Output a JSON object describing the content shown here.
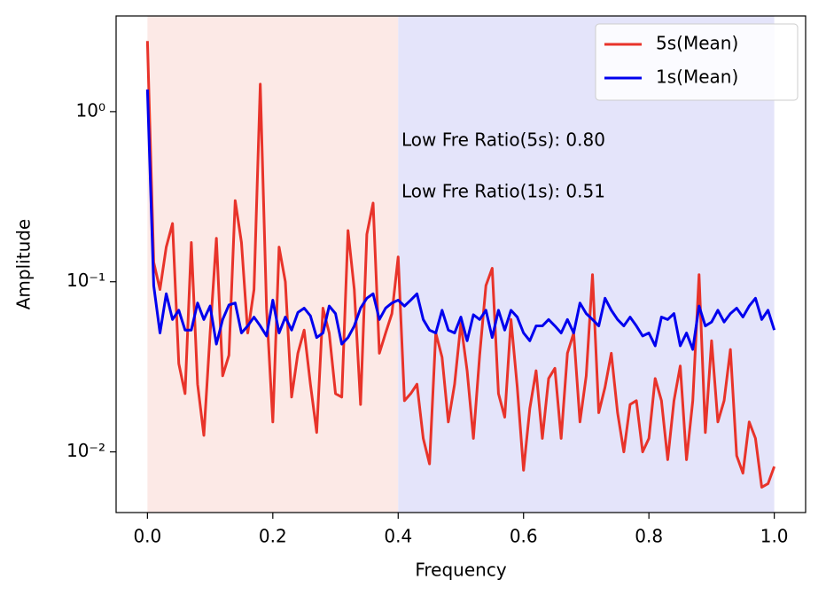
{
  "chart_data": {
    "type": "line",
    "xlabel": "Frequency",
    "ylabel": "Amplitude",
    "x": [
      0,
      0.01,
      0.02,
      0.03,
      0.04,
      0.05,
      0.06,
      0.07,
      0.08,
      0.09,
      0.1,
      0.11,
      0.12,
      0.13,
      0.14,
      0.15,
      0.16,
      0.17,
      0.18,
      0.19,
      0.2,
      0.21,
      0.22,
      0.23,
      0.24,
      0.25,
      0.26,
      0.27,
      0.28,
      0.29,
      0.3,
      0.31,
      0.32,
      0.33,
      0.34,
      0.35,
      0.36,
      0.37,
      0.38,
      0.39,
      0.4,
      0.41,
      0.42,
      0.43,
      0.44,
      0.45,
      0.46,
      0.47,
      0.48,
      0.49,
      0.5,
      0.51,
      0.52,
      0.53,
      0.54,
      0.55,
      0.56,
      0.57,
      0.58,
      0.59,
      0.6,
      0.61,
      0.62,
      0.63,
      0.64,
      0.65,
      0.66,
      0.67,
      0.68,
      0.69,
      0.7,
      0.71,
      0.72,
      0.73,
      0.74,
      0.75,
      0.76,
      0.77,
      0.78,
      0.79,
      0.8,
      0.81,
      0.82,
      0.83,
      0.84,
      0.85,
      0.86,
      0.87,
      0.88,
      0.89,
      0.9,
      0.91,
      0.92,
      0.93,
      0.94,
      0.95,
      0.96,
      0.97,
      0.98,
      0.99,
      1.0
    ],
    "series": [
      {
        "name": "5s(Mean)",
        "color": "#e8332a",
        "values": [
          2.6,
          0.13,
          0.09,
          0.16,
          0.22,
          0.033,
          0.022,
          0.17,
          0.025,
          0.0125,
          0.05,
          0.18,
          0.028,
          0.037,
          0.3,
          0.17,
          0.05,
          0.09,
          1.45,
          0.07,
          0.015,
          0.16,
          0.1,
          0.021,
          0.038,
          0.052,
          0.025,
          0.013,
          0.07,
          0.05,
          0.022,
          0.021,
          0.2,
          0.09,
          0.019,
          0.19,
          0.29,
          0.038,
          0.05,
          0.065,
          0.14,
          0.02,
          0.022,
          0.025,
          0.012,
          0.0085,
          0.05,
          0.036,
          0.015,
          0.025,
          0.057,
          0.03,
          0.012,
          0.037,
          0.095,
          0.12,
          0.022,
          0.016,
          0.06,
          0.024,
          0.0078,
          0.018,
          0.03,
          0.012,
          0.027,
          0.031,
          0.012,
          0.038,
          0.05,
          0.015,
          0.028,
          0.11,
          0.017,
          0.024,
          0.038,
          0.017,
          0.01,
          0.019,
          0.02,
          0.01,
          0.012,
          0.027,
          0.02,
          0.009,
          0.02,
          0.032,
          0.009,
          0.02,
          0.11,
          0.013,
          0.045,
          0.015,
          0.02,
          0.04,
          0.0095,
          0.0075,
          0.015,
          0.012,
          0.0062,
          0.0065,
          0.0082
        ]
      },
      {
        "name": "1s(Mean)",
        "color": "#0000ee",
        "values": [
          1.35,
          0.095,
          0.05,
          0.085,
          0.06,
          0.068,
          0.052,
          0.052,
          0.075,
          0.06,
          0.072,
          0.043,
          0.06,
          0.073,
          0.075,
          0.05,
          0.055,
          0.062,
          0.055,
          0.048,
          0.078,
          0.05,
          0.062,
          0.052,
          0.066,
          0.07,
          0.063,
          0.047,
          0.05,
          0.072,
          0.065,
          0.043,
          0.047,
          0.055,
          0.07,
          0.08,
          0.085,
          0.06,
          0.07,
          0.075,
          0.078,
          0.072,
          0.078,
          0.085,
          0.06,
          0.052,
          0.05,
          0.068,
          0.052,
          0.05,
          0.062,
          0.045,
          0.064,
          0.06,
          0.068,
          0.047,
          0.068,
          0.052,
          0.068,
          0.062,
          0.05,
          0.045,
          0.055,
          0.055,
          0.06,
          0.055,
          0.05,
          0.06,
          0.05,
          0.075,
          0.065,
          0.06,
          0.055,
          0.08,
          0.068,
          0.06,
          0.055,
          0.062,
          0.055,
          0.048,
          0.05,
          0.042,
          0.062,
          0.06,
          0.065,
          0.042,
          0.05,
          0.04,
          0.072,
          0.055,
          0.058,
          0.068,
          0.058,
          0.065,
          0.07,
          0.062,
          0.072,
          0.08,
          0.06,
          0.068,
          0.052
        ]
      }
    ],
    "annotations": [
      {
        "text": "Low Fre Ratio(5s): 0.80",
        "color": "#e8332a"
      },
      {
        "text": "Low Fre Ratio(1s): 0.51",
        "color": "#0000ee"
      }
    ],
    "shaded_regions": [
      {
        "range": [
          0,
          0.4
        ],
        "color": "#fce9e6"
      },
      {
        "range": [
          0.4,
          1.0
        ],
        "color": "#e4e4fa"
      }
    ],
    "xlim": [
      -0.05,
      1.05
    ],
    "xticks": [
      {
        "value": 0,
        "label": "0.0"
      },
      0.2,
      0.4,
      0.6,
      0.8,
      {
        "value": 1,
        "label": "1.0"
      }
    ],
    "ylim": [
      0.0044,
      3.65
    ],
    "yscale": "log",
    "yticks": [
      {
        "value": 0.01,
        "label": "10⁻²"
      },
      {
        "value": 0.1,
        "label": "10⁻¹"
      },
      {
        "value": 1,
        "label": "10⁰"
      }
    ],
    "legend": "upper right"
  }
}
